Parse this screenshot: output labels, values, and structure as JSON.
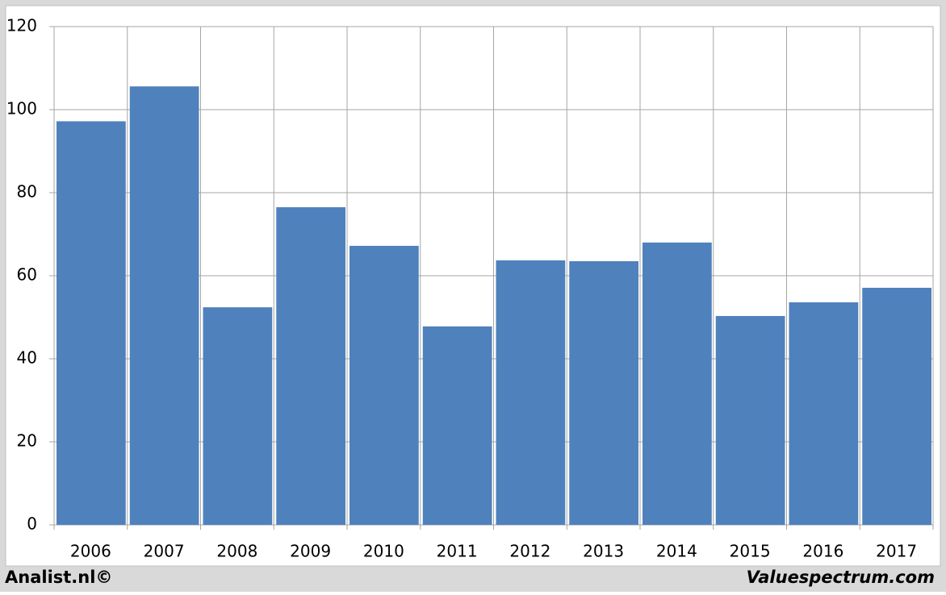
{
  "chart_data": {
    "type": "bar",
    "categories": [
      "2006",
      "2007",
      "2008",
      "2009",
      "2010",
      "2011",
      "2012",
      "2013",
      "2014",
      "2015",
      "2016",
      "2017"
    ],
    "values": [
      97.2,
      105.6,
      52.4,
      76.5,
      67.2,
      47.8,
      63.7,
      63.5,
      68,
      50.3,
      53.6,
      57.1
    ],
    "color": "#4f81bd",
    "ylim": [
      0,
      120
    ],
    "yticks": [
      0,
      20,
      40,
      60,
      80,
      100,
      120
    ],
    "grid": true,
    "source_left": "Analist.nl©",
    "source_right": "Valuespectrum.com"
  }
}
